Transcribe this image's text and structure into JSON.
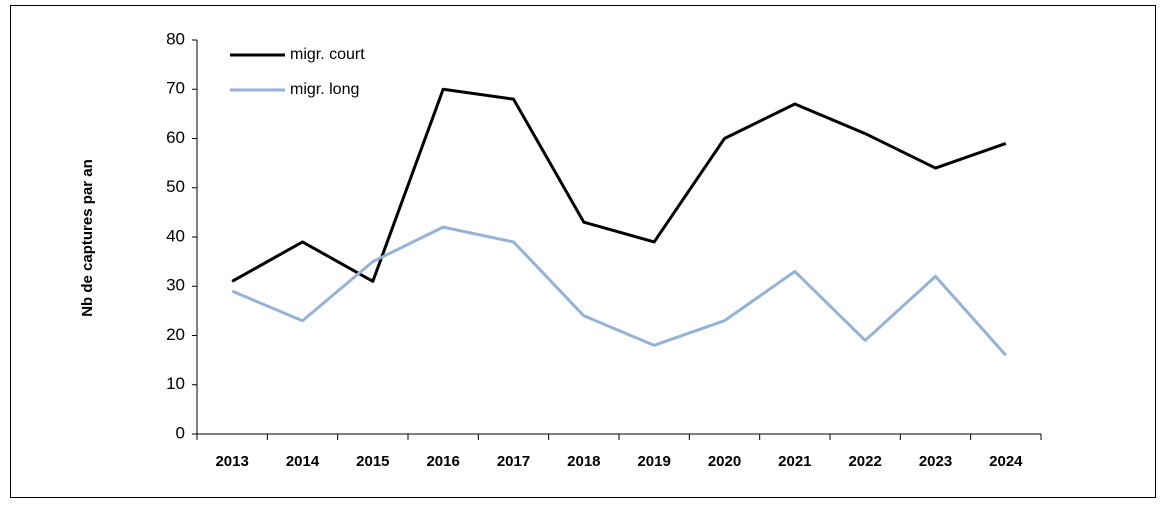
{
  "chart_data": {
    "type": "line",
    "y_label": "Nb de captures par an",
    "categories": [
      "2013",
      "2014",
      "2015",
      "2016",
      "2017",
      "2018",
      "2019",
      "2020",
      "2021",
      "2022",
      "2023",
      "2024"
    ],
    "series": [
      {
        "name": "migr. court",
        "color": "#000000",
        "values": [
          31,
          39,
          31,
          70,
          68,
          43,
          39,
          60,
          67,
          61,
          54,
          59
        ]
      },
      {
        "name": "migr. long",
        "color": "#95b3d7",
        "values": [
          29,
          23,
          35,
          42,
          39,
          24,
          18,
          23,
          33,
          19,
          32,
          16
        ]
      }
    ],
    "ylim": [
      0,
      80
    ],
    "yticks": [
      0,
      10,
      20,
      30,
      40,
      50,
      60,
      70,
      80
    ],
    "grid": false,
    "legend": "upper left"
  }
}
